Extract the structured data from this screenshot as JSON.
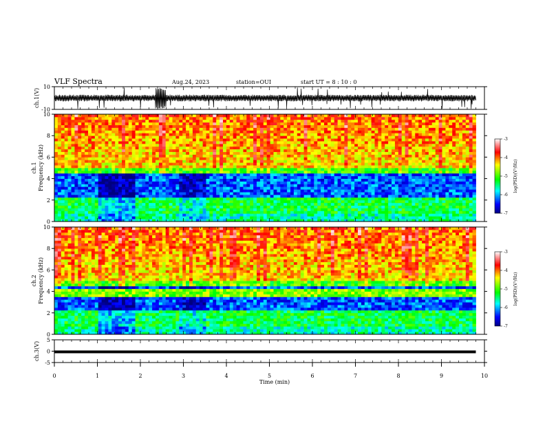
{
  "header": {
    "title": "VLF Spectra",
    "date": "Aug.24, 2023",
    "station": "station=OUI",
    "start": "start UT = 8 : 10 : 0"
  },
  "chart_data": [
    {
      "type": "line",
      "name": "ch1-waveform",
      "ylabel": "ch.1(V)",
      "ylim": [
        -10,
        10
      ],
      "yticks": [
        "10",
        "-10"
      ],
      "xlim": [
        0,
        10
      ]
    },
    {
      "type": "heatmap",
      "name": "ch1-spectrogram",
      "ylabel": "ch.1\nFrequency (kHz)",
      "ylabel_line1": "ch.1",
      "ylabel_line2": "Frequency (kHz)",
      "ylim": [
        0,
        10
      ],
      "yticks": [
        "0",
        "2",
        "4",
        "6",
        "8",
        "10"
      ],
      "xlim": [
        0,
        10
      ],
      "colorbar": {
        "label": "log(PSD)(V²/Hz)",
        "ticks": [
          "-3",
          "-4",
          "-5",
          "-6",
          "-7"
        ],
        "range": [
          -7,
          -3
        ]
      }
    },
    {
      "type": "heatmap",
      "name": "ch2-spectrogram",
      "ylabel_line1": "ch.2",
      "ylabel_line2": "Frequency (kHz)",
      "ylim": [
        0,
        10
      ],
      "yticks": [
        "0",
        "2",
        "4",
        "6",
        "8",
        "10"
      ],
      "xlim": [
        0,
        10
      ],
      "colorbar": {
        "label": "log(PSD)(V²/Hz)",
        "ticks": [
          "-3",
          "-4",
          "-5",
          "-6",
          "-7"
        ],
        "range": [
          -7,
          -3
        ]
      }
    },
    {
      "type": "line",
      "name": "ch3-waveform",
      "ylabel": "ch.3(V)",
      "ylim": [
        -5,
        5
      ],
      "yticks": [
        "5",
        "0",
        "-5"
      ],
      "xlim": [
        0,
        10
      ],
      "level": -0.3
    }
  ],
  "xaxis": {
    "label": "Time (min)",
    "ticks": [
      "0",
      "1",
      "2",
      "3",
      "4",
      "5",
      "6",
      "7",
      "8",
      "9",
      "10"
    ],
    "data_end_min": 9.8
  },
  "colors": {
    "high": "#ff0000",
    "mid": "#ffff00",
    "low": "#00c8ff",
    "lowest": "#0000c8"
  }
}
